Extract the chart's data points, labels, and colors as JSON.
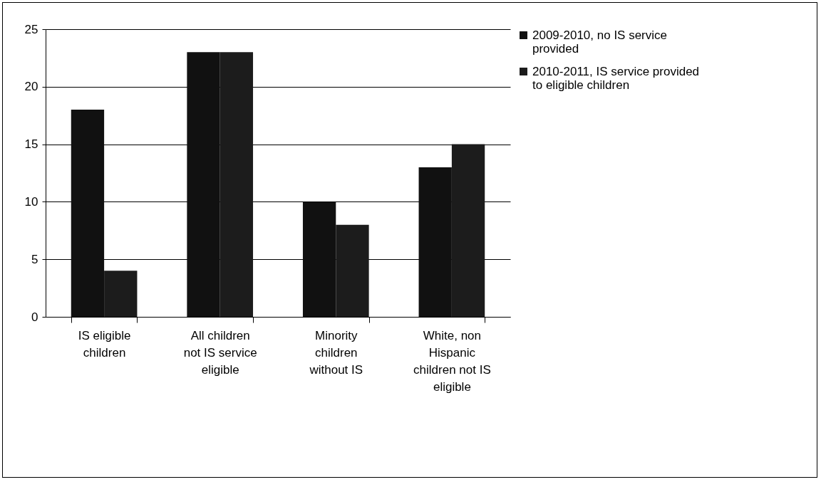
{
  "chart_data": {
    "type": "bar",
    "categories": [
      "IS eligible children",
      "All children not IS service eligible",
      "Minority children without IS",
      "White, non Hispanic children not IS eligible"
    ],
    "series": [
      {
        "name": "2009-2010, no IS service provided",
        "color": "#111111",
        "values": [
          18,
          23,
          10,
          13
        ]
      },
      {
        "name": "2010-2011, IS service provided to eligible children",
        "color": "#1c1c1c",
        "values": [
          4,
          23,
          8,
          15
        ]
      }
    ],
    "ylim": [
      0,
      25
    ],
    "yticks": [
      0,
      5,
      10,
      15,
      20,
      25
    ],
    "grid": "y",
    "legend": "right"
  }
}
